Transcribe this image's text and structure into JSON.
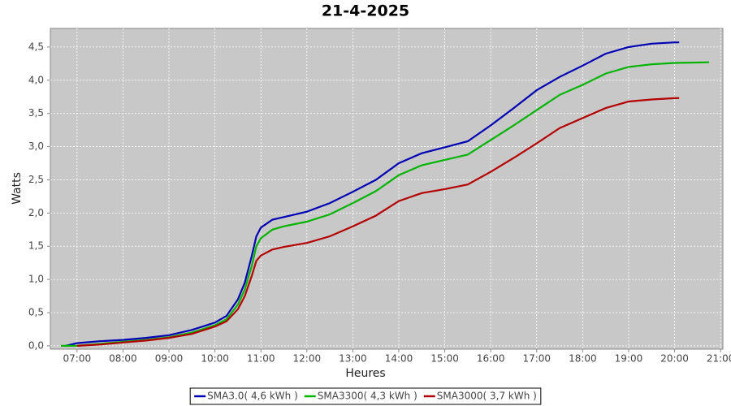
{
  "chart_data": {
    "type": "line",
    "title": "21-4-2025",
    "x_label": "Heures",
    "y_label": "Watts",
    "xlim": [
      6.42,
      21.05
    ],
    "ylim": [
      -0.05,
      4.78
    ],
    "grid": true,
    "legend": "bottom",
    "xticks": [
      {
        "value": 7,
        "label": "07:00"
      },
      {
        "value": 8,
        "label": "08:00"
      },
      {
        "value": 9,
        "label": "09:00"
      },
      {
        "value": 10,
        "label": "10:00"
      },
      {
        "value": 11,
        "label": "11:00"
      },
      {
        "value": 12,
        "label": "12:00"
      },
      {
        "value": 13,
        "label": "13:00"
      },
      {
        "value": 14,
        "label": "14:00"
      },
      {
        "value": 15,
        "label": "15:00"
      },
      {
        "value": 16,
        "label": "16:00"
      },
      {
        "value": 17,
        "label": "17:00"
      },
      {
        "value": 18,
        "label": "18:00"
      },
      {
        "value": 19,
        "label": "19:00"
      },
      {
        "value": 20,
        "label": "20:00"
      },
      {
        "value": 21,
        "label": "21:00"
      }
    ],
    "yticks": [
      {
        "value": 0,
        "label": "0,0"
      },
      {
        "value": 0.5,
        "label": "0,5"
      },
      {
        "value": 1,
        "label": "1,0"
      },
      {
        "value": 1.5,
        "label": "1,5"
      },
      {
        "value": 2,
        "label": "2,0"
      },
      {
        "value": 2.5,
        "label": "2,5"
      },
      {
        "value": 3,
        "label": "3,0"
      },
      {
        "value": 3.5,
        "label": "3,5"
      },
      {
        "value": 4,
        "label": "4,0"
      },
      {
        "value": 4.5,
        "label": "4,5"
      }
    ],
    "series": [
      {
        "name": "SMA3.0( 4,6 kWh )",
        "color": "#0000b4",
        "x": [
          6.75,
          7,
          7.5,
          8,
          8.5,
          9,
          9.5,
          10,
          10.25,
          10.5,
          10.65,
          10.8,
          10.9,
          11,
          11.25,
          11.5,
          12,
          12.5,
          13,
          13.5,
          14,
          14.5,
          15,
          15.5,
          16,
          16.5,
          17,
          17.5,
          18,
          18.5,
          19,
          19.5,
          20,
          20.1
        ],
        "values": [
          0,
          0.04,
          0.07,
          0.09,
          0.12,
          0.16,
          0.24,
          0.35,
          0.45,
          0.7,
          0.95,
          1.35,
          1.65,
          1.78,
          1.9,
          1.94,
          2.02,
          2.15,
          2.32,
          2.5,
          2.75,
          2.9,
          2.99,
          3.08,
          3.32,
          3.58,
          3.85,
          4.05,
          4.22,
          4.4,
          4.5,
          4.55,
          4.57,
          4.57
        ]
      },
      {
        "name": "SMA3300( 4,3 kWh )",
        "color": "#00b400",
        "x": [
          6.65,
          7,
          7.5,
          8,
          8.5,
          9,
          9.5,
          10,
          10.25,
          10.5,
          10.65,
          10.8,
          10.9,
          11,
          11.25,
          11.5,
          12,
          12.5,
          13,
          13.5,
          14,
          14.5,
          15,
          15.5,
          16,
          16.5,
          17,
          17.5,
          18,
          18.5,
          19,
          19.5,
          20,
          20.75
        ],
        "values": [
          0,
          0,
          0.03,
          0.06,
          0.09,
          0.13,
          0.2,
          0.31,
          0.4,
          0.62,
          0.85,
          1.2,
          1.5,
          1.62,
          1.75,
          1.8,
          1.87,
          1.98,
          2.15,
          2.33,
          2.57,
          2.72,
          2.8,
          2.88,
          3.1,
          3.32,
          3.55,
          3.78,
          3.93,
          4.1,
          4.2,
          4.24,
          4.26,
          4.27
        ]
      },
      {
        "name": "SMA3000( 3,7 kWh )",
        "color": "#b40000",
        "x": [
          7,
          7.5,
          8,
          8.5,
          9,
          9.5,
          10,
          10.25,
          10.5,
          10.65,
          10.8,
          10.9,
          11,
          11.25,
          11.5,
          12,
          12.5,
          13,
          13.5,
          14,
          14.5,
          15,
          15.5,
          16,
          16.5,
          17,
          17.5,
          18,
          18.5,
          19,
          19.5,
          20,
          20.1
        ],
        "values": [
          0,
          0.02,
          0.05,
          0.08,
          0.12,
          0.18,
          0.29,
          0.37,
          0.55,
          0.75,
          1.05,
          1.28,
          1.36,
          1.45,
          1.49,
          1.55,
          1.65,
          1.8,
          1.96,
          2.18,
          2.3,
          2.36,
          2.43,
          2.62,
          2.83,
          3.05,
          3.28,
          3.43,
          3.58,
          3.68,
          3.71,
          3.73,
          3.73
        ]
      }
    ]
  }
}
